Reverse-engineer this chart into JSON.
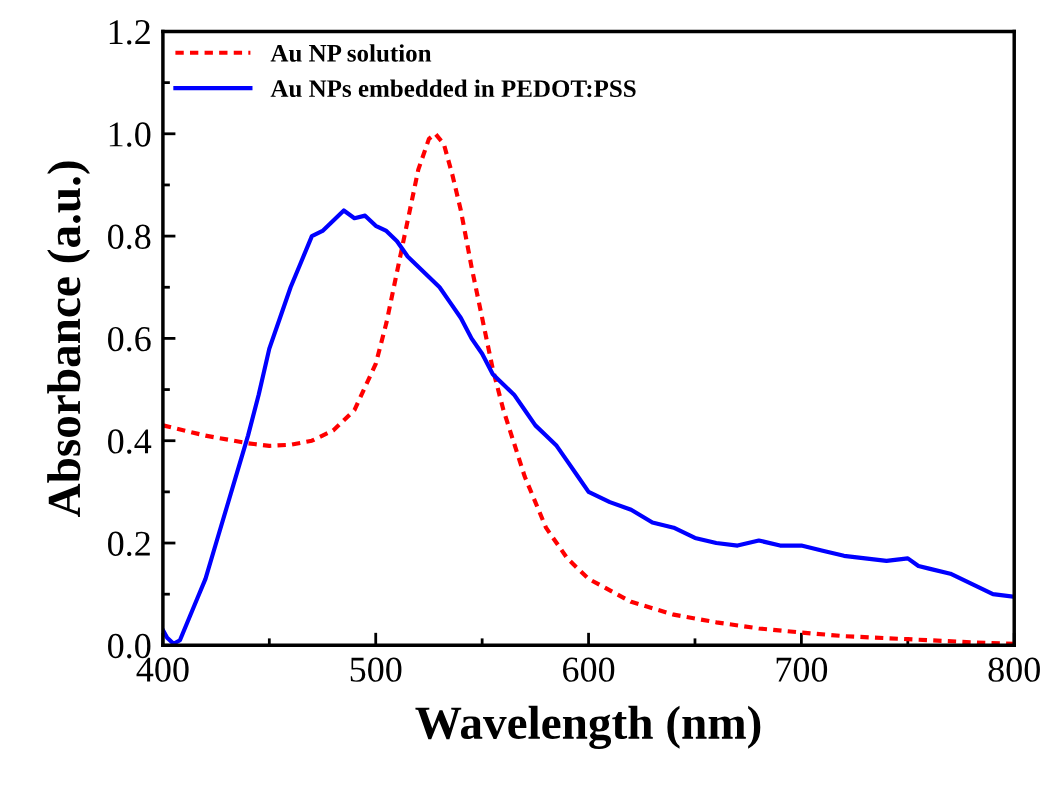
{
  "chart_data": {
    "type": "line",
    "xlabel": "Wavelength (nm)",
    "ylabel": "Absorbance (a.u.)",
    "xlim": [
      400,
      800
    ],
    "ylim": [
      0.0,
      1.2
    ],
    "xticks": [
      400,
      500,
      600,
      700,
      800
    ],
    "yticks": [
      {
        "value": 0,
        "label": "0.0"
      },
      {
        "value": 0.2,
        "label": "0.2"
      },
      {
        "value": 0.4,
        "label": "0.4"
      },
      {
        "value": 0.6,
        "label": "0.6"
      },
      {
        "value": 0.8,
        "label": "0.8"
      },
      {
        "value": 1.0,
        "label": "1.0"
      },
      {
        "value": 1.2,
        "label": "1.2"
      }
    ],
    "legend": "top left",
    "grid": false,
    "series": [
      {
        "name": "Au NP solution",
        "color": "#ff0000",
        "line_style": "dashed",
        "x": [
          400,
          420,
          440,
          450,
          460,
          470,
          480,
          490,
          500,
          505,
          510,
          515,
          520,
          525,
          528,
          532,
          536,
          540,
          545,
          550,
          555,
          560,
          570,
          580,
          590,
          600,
          620,
          640,
          660,
          680,
          700,
          720,
          750,
          780,
          800
        ],
        "values": [
          0.43,
          0.41,
          0.395,
          0.39,
          0.392,
          0.4,
          0.42,
          0.46,
          0.55,
          0.63,
          0.73,
          0.83,
          0.93,
          0.99,
          1.0,
          0.98,
          0.92,
          0.85,
          0.74,
          0.64,
          0.54,
          0.46,
          0.33,
          0.23,
          0.17,
          0.13,
          0.085,
          0.06,
          0.045,
          0.033,
          0.025,
          0.018,
          0.012,
          0.006,
          0.003
        ]
      },
      {
        "name": "Au NPs embedded in PEDOT:PSS",
        "color": "#0000ff",
        "line_style": "solid",
        "x": [
          400,
          402,
          405,
          408,
          412,
          416,
          420,
          425,
          430,
          435,
          440,
          445,
          450,
          455,
          460,
          465,
          470,
          475,
          480,
          485,
          490,
          495,
          500,
          505,
          510,
          515,
          520,
          525,
          530,
          535,
          540,
          545,
          550,
          555,
          560,
          565,
          570,
          575,
          580,
          585,
          590,
          595,
          600,
          610,
          620,
          630,
          640,
          650,
          660,
          670,
          680,
          690,
          700,
          710,
          720,
          730,
          740,
          750,
          755,
          760,
          770,
          780,
          790,
          800
        ],
        "values": [
          0.03,
          0.015,
          0.003,
          0.01,
          0.05,
          0.09,
          0.13,
          0.2,
          0.27,
          0.34,
          0.41,
          0.49,
          0.58,
          0.64,
          0.7,
          0.75,
          0.8,
          0.81,
          0.83,
          0.85,
          0.835,
          0.84,
          0.82,
          0.81,
          0.79,
          0.76,
          0.74,
          0.72,
          0.7,
          0.67,
          0.64,
          0.6,
          0.57,
          0.53,
          0.51,
          0.49,
          0.46,
          0.43,
          0.41,
          0.39,
          0.36,
          0.33,
          0.3,
          0.28,
          0.265,
          0.24,
          0.23,
          0.21,
          0.2,
          0.195,
          0.205,
          0.195,
          0.195,
          0.185,
          0.175,
          0.17,
          0.165,
          0.17,
          0.155,
          0.15,
          0.14,
          0.12,
          0.1,
          0.095
        ]
      }
    ]
  }
}
